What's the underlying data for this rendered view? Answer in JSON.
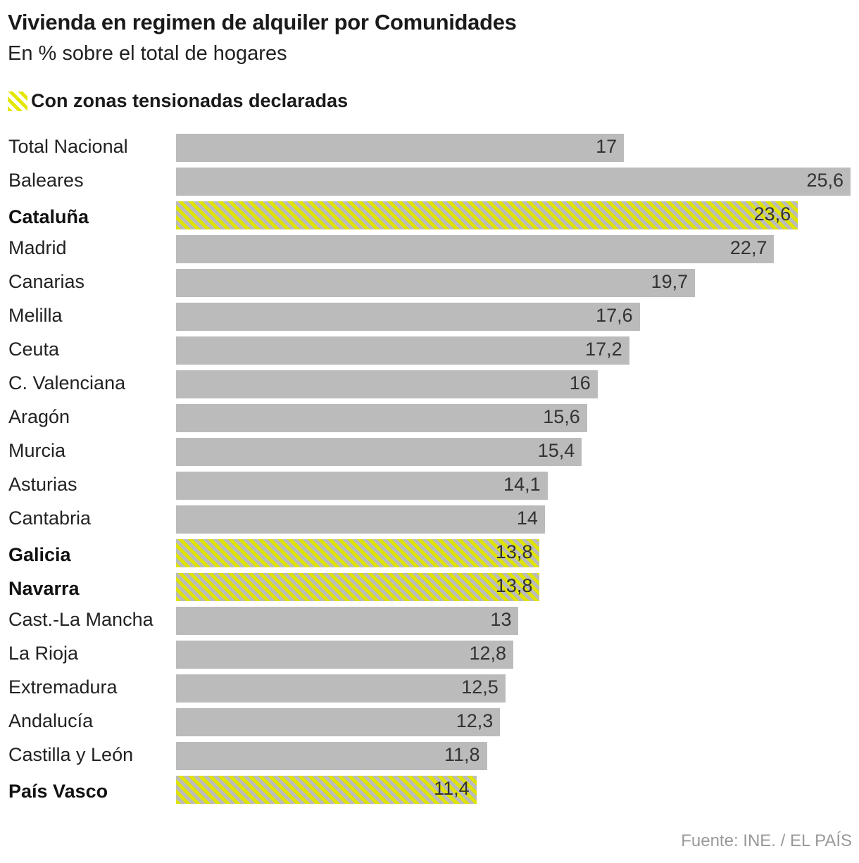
{
  "chart_data": {
    "type": "bar",
    "orientation": "horizontal",
    "title": "Vivienda en regimen de alquiler por Comunidades",
    "subtitle": "En % sobre el total de hogares",
    "legend": {
      "label": "Con zonas tensionadas declaradas",
      "placement": "top-left",
      "pattern": "hatched"
    },
    "categories": [
      "Total Nacional",
      "Baleares",
      "Cataluña",
      "Madrid",
      "Canarias",
      "Melilla",
      "Ceuta",
      "C. Valenciana",
      "Aragón",
      "Murcia",
      "Asturias",
      "Cantabria",
      "Galicia",
      "Navarra",
      "Cast.-La Mancha",
      "La Rioja",
      "Extremadura",
      "Andalucía",
      "Castilla y León",
      "País Vasco"
    ],
    "values": [
      17,
      25.6,
      23.6,
      22.7,
      19.7,
      17.6,
      17.2,
      16,
      15.6,
      15.4,
      14.1,
      14,
      13.8,
      13.8,
      13,
      12.8,
      12.5,
      12.3,
      11.8,
      11.4
    ],
    "value_labels": [
      "17",
      "25,6",
      "23,6",
      "22,7",
      "19,7",
      "17,6",
      "17,2",
      "16",
      "15,6",
      "15,4",
      "14,1",
      "14",
      "13,8",
      "13,8",
      "13",
      "12,8",
      "12,5",
      "12,3",
      "11,8",
      "11,4"
    ],
    "tensioned": [
      false,
      false,
      true,
      false,
      false,
      false,
      false,
      false,
      false,
      false,
      false,
      false,
      true,
      true,
      false,
      false,
      false,
      false,
      false,
      true
    ],
    "xlim": [
      0,
      25.6
    ],
    "grid": false,
    "colors": {
      "bar": "#bbbbbb",
      "highlight": "#dfe300"
    },
    "source": "Fuente: INE. / EL PAÍS"
  }
}
